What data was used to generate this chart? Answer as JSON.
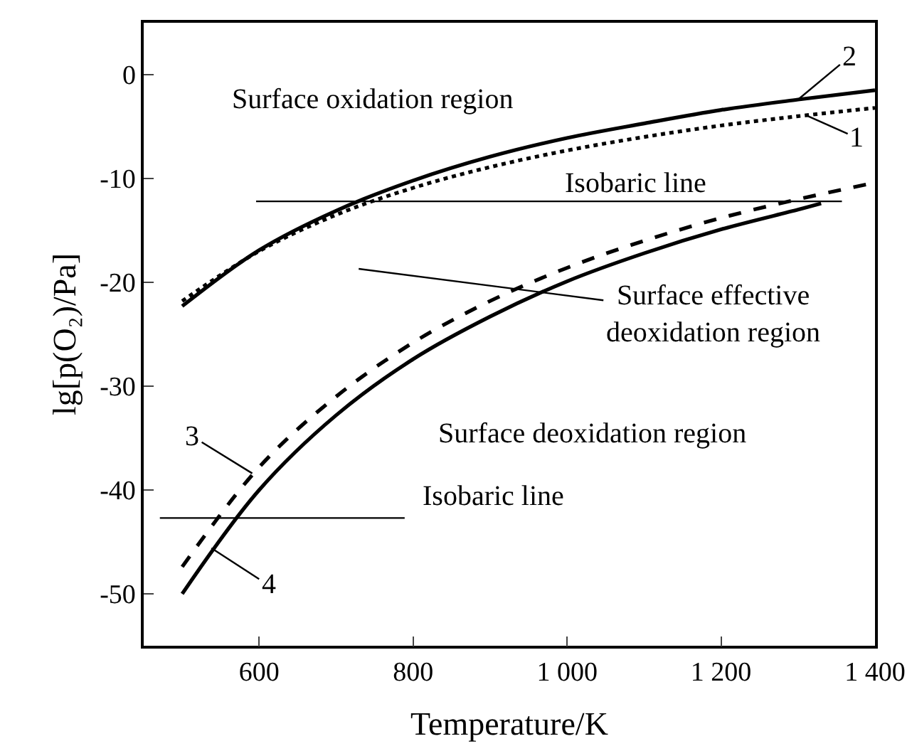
{
  "chart_data": {
    "type": "line",
    "xlabel": "Temperature/K",
    "ylabel": "lg[p(O₂)/Pa]",
    "xlim": [
      450,
      1400
    ],
    "xticks": [
      600,
      800,
      {
        "value": 1000,
        "label": "1 000"
      },
      {
        "value": 1200,
        "label": "1 200"
      },
      {
        "value": 1400,
        "label": "1 400"
      }
    ],
    "ylim": [
      -55,
      5
    ],
    "yticks": [
      0,
      -10,
      -20,
      -30,
      -40,
      -50
    ],
    "grid": false,
    "marker": "none",
    "series": [
      {
        "color": "#000000",
        "line_style": "dotted",
        "x": [
          500,
          600,
          700,
          800,
          900,
          1000,
          1100,
          1200,
          1300,
          1400
        ],
        "values": [
          -21.8,
          -17,
          -13.5,
          -10.9,
          -8.9,
          -7.3,
          -6,
          -4.9,
          -4,
          -3.2
        ]
      },
      {
        "color": "#000000",
        "line_style": "solid",
        "x": [
          500,
          600,
          700,
          800,
          900,
          1000,
          1100,
          1200,
          1300,
          1400
        ],
        "values": [
          -22.3,
          -16.9,
          -13.1,
          -10.2,
          -7.9,
          -6.1,
          -4.7,
          -3.4,
          -2.4,
          -1.5
        ]
      },
      {
        "color": "#000000",
        "line_style": "dashed",
        "x": [
          500,
          600,
          700,
          800,
          900,
          1000,
          1100,
          1200,
          1300,
          1400
        ],
        "values": [
          -47.4,
          -37.8,
          -31,
          -25.8,
          -21.8,
          -18.6,
          -16,
          -13.8,
          -12,
          -10.4
        ]
      },
      {
        "color": "#000000",
        "line_style": "solid",
        "x": [
          500,
          600,
          700,
          800,
          900,
          1000,
          1100,
          1200,
          1300,
          1330
        ],
        "values": [
          -50,
          -40,
          -32.8,
          -27.4,
          -23.3,
          -19.9,
          -17.2,
          -14.9,
          -13,
          -12.4
        ]
      },
      {
        "color": "#000000",
        "line_style": "solid",
        "x": [
          596,
          1357
        ],
        "values": [
          -12.2,
          -12.2
        ]
      },
      {
        "color": "#000000",
        "line_style": "solid",
        "x": [
          471,
          789
        ],
        "values": [
          -42.7,
          -42.7
        ]
      }
    ],
    "annotations": [
      "Surface oxidation region",
      "Isobaric line",
      "Surface effective\ndeoxidation region",
      "Surface deoxidation region",
      "Isobaric line",
      {
        "text": "2",
        "x": 1300,
        "y": -2.4
      },
      {
        "text": "1",
        "x": 1310,
        "y": -3.9
      },
      {
        "text": "3",
        "x": 591,
        "y": -38.4
      },
      {
        "text": "4",
        "x": 538,
        "y": -45.6
      }
    ]
  }
}
